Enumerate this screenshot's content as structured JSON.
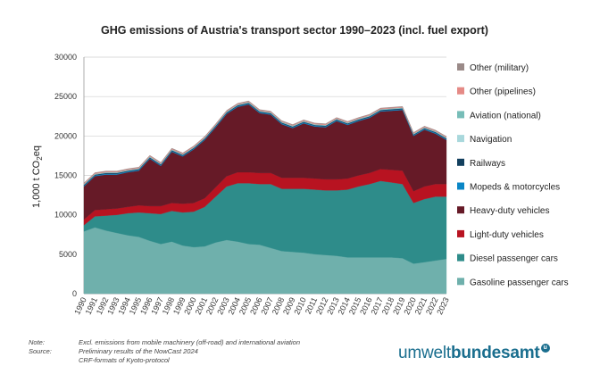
{
  "chart_data": {
    "type": "area",
    "stacked": true,
    "title": "GHG emissions of Austria's transport sector 1990–2023 (incl. fuel export)",
    "ylabel_main": "1,000 t CO",
    "ylabel_sub": "2",
    "ylabel_end": "eq",
    "ylim": [
      0,
      30000
    ],
    "yticks": [
      "0",
      "5000",
      "10000",
      "15000",
      "20000",
      "25000",
      "30000"
    ],
    "ytick_values": [
      0,
      5000,
      10000,
      15000,
      20000,
      25000,
      30000
    ],
    "x": [
      "1990",
      "1991",
      "1992",
      "1993",
      "1994",
      "1995",
      "1996",
      "1997",
      "1998",
      "1999",
      "2000",
      "2001",
      "2002",
      "2003",
      "2004",
      "2005",
      "2006",
      "2007",
      "2008",
      "2009",
      "2010",
      "2011",
      "2012",
      "2013",
      "2014",
      "2015",
      "2016",
      "2017",
      "2018",
      "2019",
      "2020",
      "2021",
      "2022",
      "2023"
    ],
    "grid": "horizontal",
    "legend_position": "right",
    "series": [
      {
        "name": "Gasoline passenger cars",
        "color": "#6fb0ac",
        "values": [
          7900,
          8400,
          8000,
          7700,
          7400,
          7200,
          6700,
          6300,
          6600,
          6100,
          5900,
          6000,
          6500,
          6800,
          6600,
          6300,
          6200,
          5800,
          5400,
          5300,
          5200,
          5000,
          4900,
          4800,
          4600,
          4600,
          4600,
          4600,
          4600,
          4500,
          3800,
          4000,
          4200,
          4400
        ]
      },
      {
        "name": "Diesel passenger cars",
        "color": "#2e8c8a",
        "values": [
          800,
          1400,
          1900,
          2300,
          2800,
          3100,
          3500,
          3800,
          3900,
          4200,
          4500,
          5000,
          5800,
          6800,
          7400,
          7700,
          7700,
          8100,
          7900,
          8000,
          8100,
          8200,
          8200,
          8300,
          8600,
          9000,
          9300,
          9700,
          9500,
          9400,
          7700,
          8000,
          8100,
          7900
        ]
      },
      {
        "name": "Light-duty vehicles",
        "color": "#b81321",
        "values": [
          700,
          800,
          800,
          800,
          800,
          900,
          900,
          1000,
          1000,
          1100,
          1100,
          1100,
          1200,
          1300,
          1400,
          1400,
          1400,
          1400,
          1400,
          1400,
          1400,
          1400,
          1400,
          1400,
          1400,
          1400,
          1400,
          1500,
          1600,
          1700,
          1500,
          1600,
          1600,
          1600
        ]
      },
      {
        "name": "Heavy-duty vehicles",
        "color": "#661a27",
        "values": [
          4200,
          4300,
          4400,
          4300,
          4400,
          4400,
          6000,
          5100,
          6500,
          6000,
          6800,
          7400,
          7600,
          7900,
          8300,
          8600,
          7600,
          7400,
          6800,
          6300,
          6900,
          6600,
          6600,
          7400,
          6800,
          6900,
          7000,
          7300,
          7500,
          7700,
          7000,
          7200,
          6400,
          5600
        ]
      },
      {
        "name": "Mopeds & motorcycles",
        "color": "#0a86c6",
        "values": [
          100,
          100,
          100,
          100,
          100,
          100,
          100,
          100,
          100,
          100,
          100,
          100,
          100,
          100,
          100,
          100,
          100,
          100,
          100,
          100,
          100,
          100,
          100,
          100,
          100,
          100,
          100,
          100,
          100,
          100,
          100,
          100,
          100,
          100
        ]
      },
      {
        "name": "Railways",
        "color": "#123f5e",
        "values": [
          100,
          100,
          100,
          100,
          100,
          100,
          100,
          100,
          100,
          100,
          100,
          100,
          100,
          100,
          100,
          100,
          100,
          100,
          100,
          100,
          100,
          100,
          100,
          100,
          100,
          100,
          100,
          100,
          100,
          100,
          100,
          100,
          100,
          100
        ]
      },
      {
        "name": "Navigation",
        "color": "#a9d8dc",
        "values": [
          50,
          50,
          50,
          50,
          50,
          50,
          50,
          50,
          50,
          50,
          50,
          50,
          50,
          50,
          50,
          50,
          50,
          50,
          50,
          50,
          50,
          50,
          50,
          50,
          50,
          50,
          50,
          50,
          50,
          50,
          50,
          50,
          50,
          50
        ]
      },
      {
        "name": "Aviation (national)",
        "color": "#77bdb8",
        "values": [
          50,
          50,
          50,
          50,
          50,
          50,
          50,
          50,
          50,
          50,
          50,
          50,
          50,
          50,
          50,
          50,
          50,
          50,
          50,
          50,
          50,
          50,
          50,
          50,
          50,
          50,
          50,
          50,
          50,
          50,
          50,
          50,
          50,
          50
        ]
      },
      {
        "name": "Other (pipelines)",
        "color": "#e58a86",
        "values": [
          100,
          100,
          100,
          100,
          100,
          100,
          100,
          100,
          100,
          100,
          100,
          100,
          100,
          100,
          100,
          100,
          100,
          100,
          100,
          100,
          100,
          100,
          100,
          100,
          100,
          100,
          100,
          100,
          100,
          100,
          100,
          100,
          100,
          100
        ]
      },
      {
        "name": "Other (military)",
        "color": "#9a8a88",
        "values": [
          50,
          50,
          50,
          50,
          50,
          50,
          50,
          50,
          50,
          50,
          50,
          50,
          50,
          50,
          50,
          50,
          50,
          50,
          50,
          50,
          50,
          50,
          50,
          50,
          50,
          50,
          50,
          50,
          50,
          50,
          50,
          50,
          50,
          50
        ]
      }
    ]
  },
  "notes": {
    "note_key": "Note:",
    "note_text": "Excl. emissions from mobile machinery (off-road) and international aviation",
    "source_key": "Source:",
    "source_text_1": "Preliminary results of the NowCast 2024",
    "source_text_2": "CRF-formats of Kyoto-protocol"
  },
  "logo": {
    "part1": "umwelt",
    "part2": "bundesamt",
    "mark": "u"
  }
}
